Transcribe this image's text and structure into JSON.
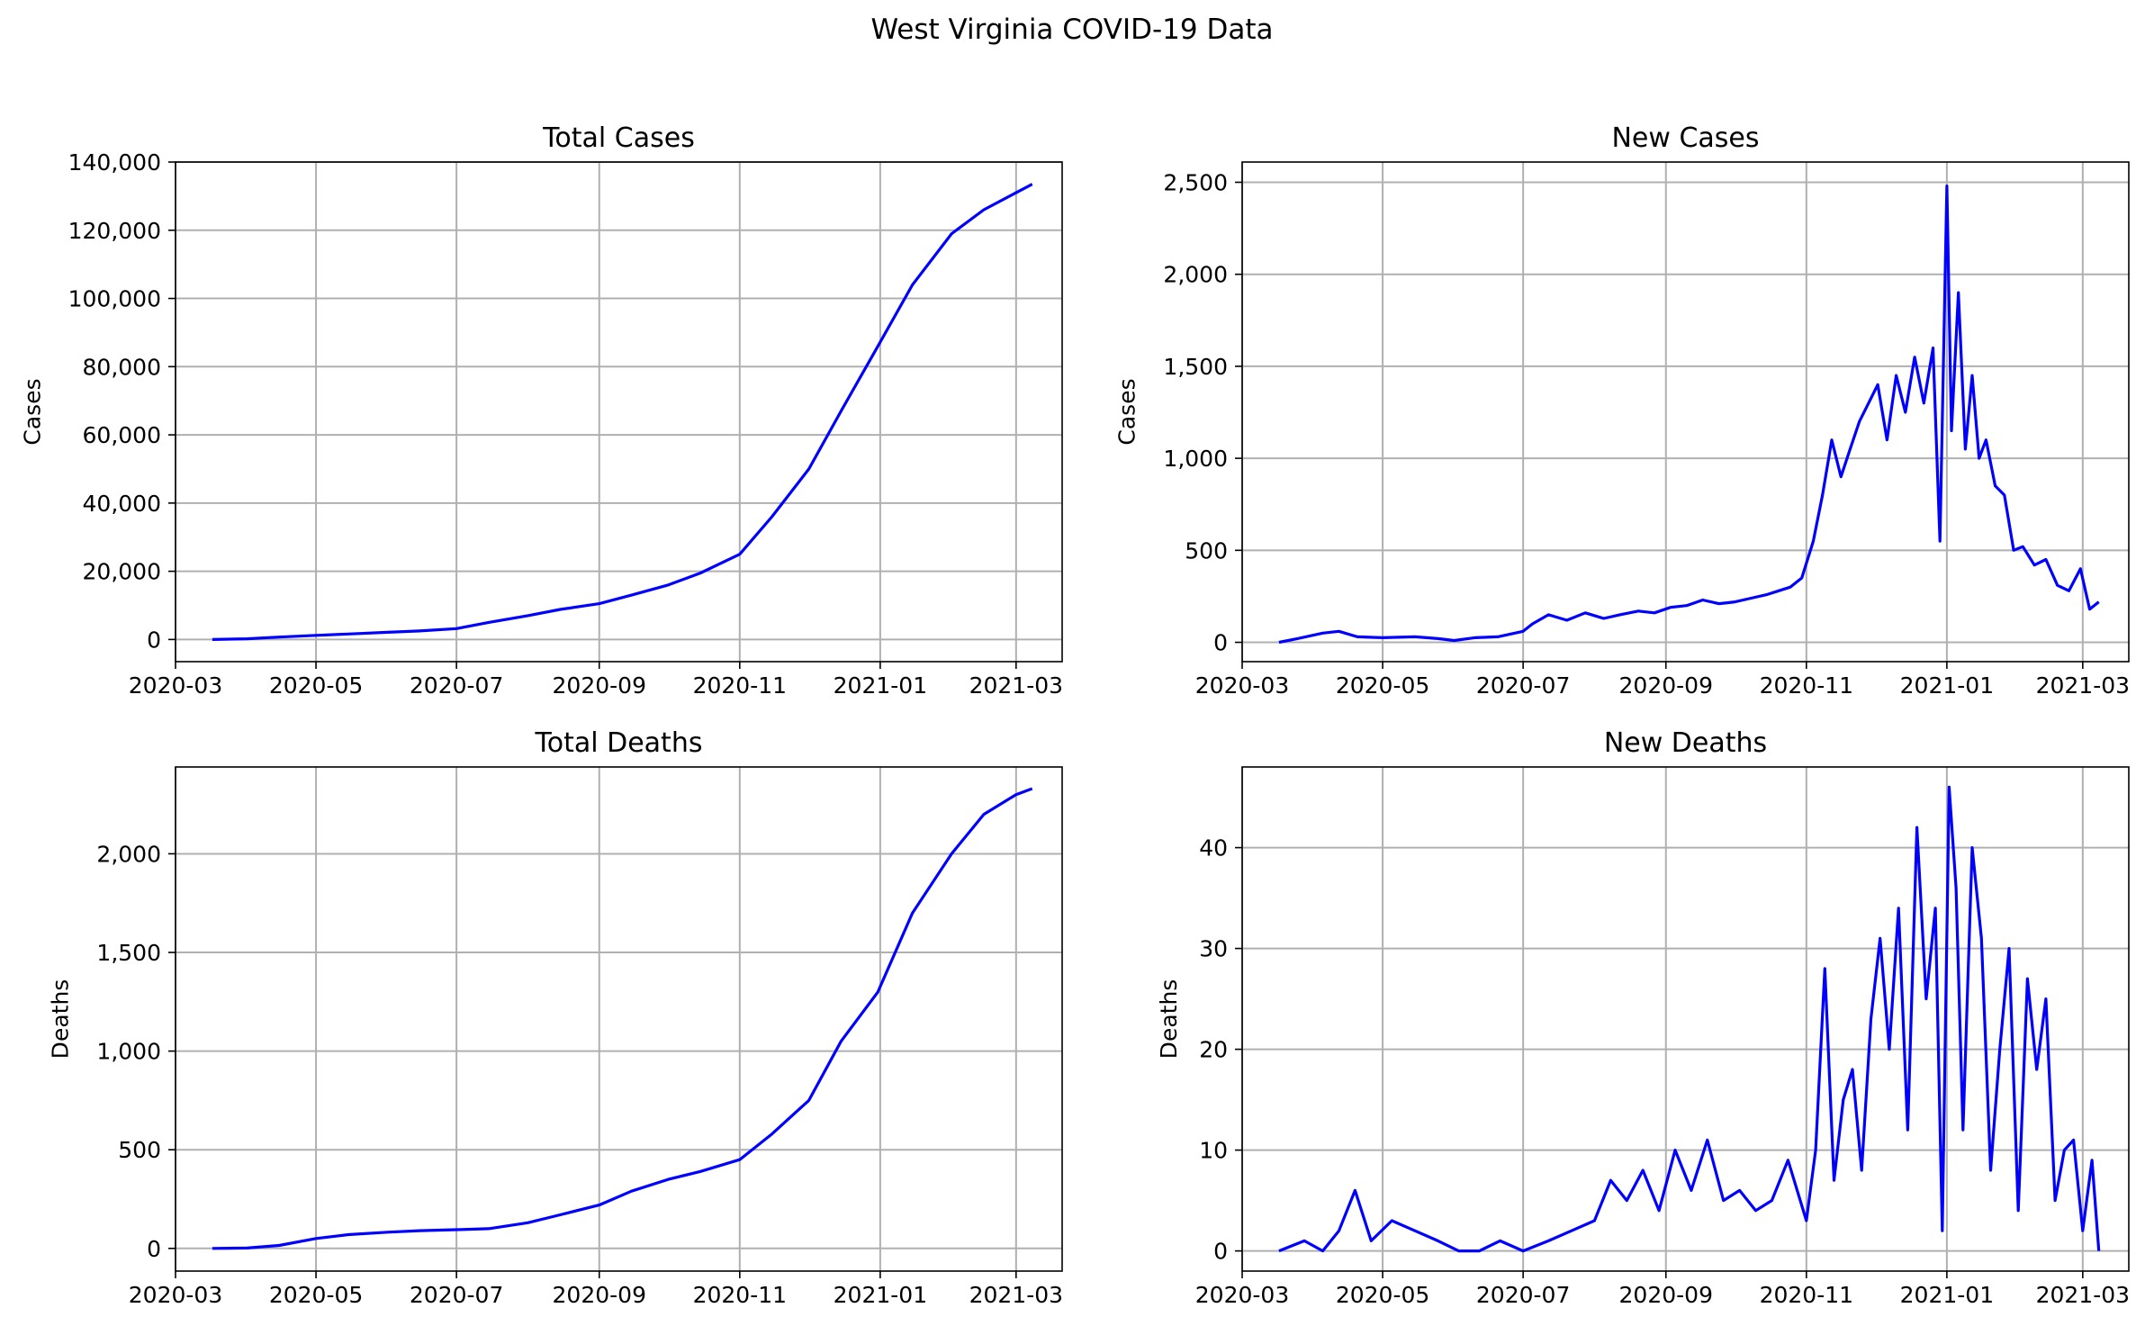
{
  "figure": {
    "title": "West Virginia COVID-19 Data"
  },
  "colors": {
    "line": "#0000ff",
    "grid": "#b0b0b0",
    "axis": "#000000"
  },
  "chart_data": [
    {
      "id": "total-cases",
      "type": "line",
      "title": "Total Cases",
      "xlabel": "",
      "ylabel": "Cases",
      "grid": true,
      "x_axis": "date",
      "xlim": [
        "2020-03-01",
        "2021-03-21"
      ],
      "ylim": [
        -6500,
        140000
      ],
      "xticks": [
        "2020-03-01",
        "2020-05-01",
        "2020-07-01",
        "2020-09-01",
        "2020-11-01",
        "2021-01-01",
        "2021-03-01"
      ],
      "xtick_labels": [
        "2020-03",
        "2020-05",
        "2020-07",
        "2020-09",
        "2020-11",
        "2021-01",
        "2021-03"
      ],
      "yticks": [
        0,
        20000,
        40000,
        60000,
        80000,
        100000,
        120000,
        140000
      ],
      "ytick_labels": [
        "0",
        "20,000",
        "40,000",
        "60,000",
        "80,000",
        "100,000",
        "120,000",
        "140,000"
      ],
      "series": [
        {
          "x": [
            "2020-03-17",
            "2020-04-01",
            "2020-04-15",
            "2020-05-01",
            "2020-05-15",
            "2020-06-01",
            "2020-06-15",
            "2020-07-01",
            "2020-07-15",
            "2020-08-01",
            "2020-08-15",
            "2020-09-01",
            "2020-09-15",
            "2020-10-01",
            "2020-10-15",
            "2020-11-01",
            "2020-11-15",
            "2020-12-01",
            "2020-12-15",
            "2020-12-31",
            "2021-01-15",
            "2021-02-01",
            "2021-02-15",
            "2021-03-01",
            "2021-03-08"
          ],
          "y": [
            0,
            200,
            700,
            1200,
            1600,
            2100,
            2500,
            3200,
            5000,
            7000,
            8800,
            10500,
            13000,
            16000,
            19500,
            25000,
            36000,
            50000,
            67000,
            86000,
            104000,
            119000,
            126000,
            131000,
            133500
          ]
        }
      ]
    },
    {
      "id": "new-cases",
      "type": "line",
      "title": "New Cases",
      "xlabel": "",
      "ylabel": "Cases",
      "grid": true,
      "x_axis": "date",
      "xlim": [
        "2020-03-01",
        "2021-03-21"
      ],
      "ylim": [
        -105,
        2610
      ],
      "xticks": [
        "2020-03-01",
        "2020-05-01",
        "2020-07-01",
        "2020-09-01",
        "2020-11-01",
        "2021-01-01",
        "2021-03-01"
      ],
      "xtick_labels": [
        "2020-03",
        "2020-05",
        "2020-07",
        "2020-09",
        "2020-11",
        "2021-01",
        "2021-03"
      ],
      "yticks": [
        0,
        500,
        1000,
        1500,
        2000,
        2500
      ],
      "ytick_labels": [
        "0",
        "500",
        "1,000",
        "1,500",
        "2,000",
        "2,500"
      ],
      "series": [
        {
          "x": [
            "2020-03-17",
            "2020-03-25",
            "2020-04-05",
            "2020-04-12",
            "2020-04-20",
            "2020-05-01",
            "2020-05-15",
            "2020-05-25",
            "2020-06-01",
            "2020-06-10",
            "2020-06-20",
            "2020-07-01",
            "2020-07-05",
            "2020-07-12",
            "2020-07-20",
            "2020-07-28",
            "2020-08-05",
            "2020-08-12",
            "2020-08-20",
            "2020-08-27",
            "2020-09-03",
            "2020-09-10",
            "2020-09-17",
            "2020-09-24",
            "2020-10-01",
            "2020-10-08",
            "2020-10-15",
            "2020-10-20",
            "2020-10-25",
            "2020-10-30",
            "2020-11-04",
            "2020-11-08",
            "2020-11-12",
            "2020-11-16",
            "2020-11-20",
            "2020-11-24",
            "2020-11-28",
            "2020-12-02",
            "2020-12-06",
            "2020-12-10",
            "2020-12-14",
            "2020-12-18",
            "2020-12-22",
            "2020-12-26",
            "2020-12-29",
            "2021-01-01",
            "2021-01-03",
            "2021-01-06",
            "2021-01-09",
            "2021-01-12",
            "2021-01-15",
            "2021-01-18",
            "2021-01-22",
            "2021-01-26",
            "2021-01-30",
            "2021-02-03",
            "2021-02-08",
            "2021-02-13",
            "2021-02-18",
            "2021-02-23",
            "2021-02-28",
            "2021-03-04",
            "2021-03-08"
          ],
          "y": [
            0,
            20,
            50,
            60,
            30,
            25,
            30,
            20,
            10,
            25,
            30,
            60,
            100,
            150,
            120,
            160,
            130,
            150,
            170,
            160,
            190,
            200,
            230,
            210,
            220,
            240,
            260,
            280,
            300,
            350,
            550,
            800,
            1100,
            900,
            1050,
            1200,
            1300,
            1400,
            1100,
            1450,
            1250,
            1550,
            1300,
            1600,
            550,
            2480,
            1150,
            1900,
            1050,
            1450,
            1000,
            1100,
            850,
            800,
            500,
            520,
            420,
            450,
            310,
            280,
            400,
            180,
            220
          ]
        }
      ]
    },
    {
      "id": "total-deaths",
      "type": "line",
      "title": "Total Deaths",
      "xlabel": "",
      "ylabel": "Deaths",
      "grid": true,
      "x_axis": "date",
      "xlim": [
        "2020-03-01",
        "2021-03-21"
      ],
      "ylim": [
        -115,
        2440
      ],
      "xticks": [
        "2020-03-01",
        "2020-05-01",
        "2020-07-01",
        "2020-09-01",
        "2020-11-01",
        "2021-01-01",
        "2021-03-01"
      ],
      "xtick_labels": [
        "2020-03",
        "2020-05",
        "2020-07",
        "2020-09",
        "2020-11",
        "2021-01",
        "2021-03"
      ],
      "yticks": [
        0,
        500,
        1000,
        1500,
        2000
      ],
      "ytick_labels": [
        "0",
        "500",
        "1,000",
        "1,500",
        "2,000"
      ],
      "series": [
        {
          "x": [
            "2020-03-17",
            "2020-04-01",
            "2020-04-15",
            "2020-05-01",
            "2020-05-15",
            "2020-06-01",
            "2020-06-15",
            "2020-07-01",
            "2020-07-15",
            "2020-08-01",
            "2020-08-15",
            "2020-09-01",
            "2020-09-15",
            "2020-10-01",
            "2020-10-15",
            "2020-11-01",
            "2020-11-15",
            "2020-12-01",
            "2020-12-15",
            "2020-12-31",
            "2021-01-15",
            "2021-02-01",
            "2021-02-15",
            "2021-03-01",
            "2021-03-08"
          ],
          "y": [
            0,
            2,
            15,
            50,
            70,
            82,
            90,
            95,
            100,
            130,
            170,
            220,
            290,
            350,
            390,
            450,
            580,
            750,
            1050,
            1300,
            1700,
            2000,
            2200,
            2300,
            2330
          ]
        }
      ]
    },
    {
      "id": "new-deaths",
      "type": "line",
      "title": "New Deaths",
      "xlabel": "",
      "ylabel": "Deaths",
      "grid": true,
      "x_axis": "date",
      "xlim": [
        "2020-03-01",
        "2021-03-21"
      ],
      "ylim": [
        -2,
        48
      ],
      "xticks": [
        "2020-03-01",
        "2020-05-01",
        "2020-07-01",
        "2020-09-01",
        "2020-11-01",
        "2021-01-01",
        "2021-03-01"
      ],
      "xtick_labels": [
        "2020-03",
        "2020-05",
        "2020-07",
        "2020-09",
        "2020-11",
        "2021-01",
        "2021-03"
      ],
      "yticks": [
        0,
        10,
        20,
        30,
        40
      ],
      "ytick_labels": [
        "0",
        "10",
        "20",
        "30",
        "40"
      ],
      "series": [
        {
          "x": [
            "2020-03-17",
            "2020-03-28",
            "2020-04-05",
            "2020-04-12",
            "2020-04-19",
            "2020-04-26",
            "2020-05-05",
            "2020-05-15",
            "2020-05-25",
            "2020-06-03",
            "2020-06-12",
            "2020-06-21",
            "2020-07-01",
            "2020-07-12",
            "2020-07-22",
            "2020-08-01",
            "2020-08-08",
            "2020-08-15",
            "2020-08-22",
            "2020-08-29",
            "2020-09-05",
            "2020-09-12",
            "2020-09-19",
            "2020-09-26",
            "2020-10-03",
            "2020-10-10",
            "2020-10-17",
            "2020-10-24",
            "2020-11-01",
            "2020-11-05",
            "2020-11-09",
            "2020-11-13",
            "2020-11-17",
            "2020-11-21",
            "2020-11-25",
            "2020-11-29",
            "2020-12-03",
            "2020-12-07",
            "2020-12-11",
            "2020-12-15",
            "2020-12-19",
            "2020-12-23",
            "2020-12-27",
            "2020-12-30",
            "2021-01-02",
            "2021-01-05",
            "2021-01-08",
            "2021-01-12",
            "2021-01-16",
            "2021-01-20",
            "2021-01-24",
            "2021-01-28",
            "2021-02-01",
            "2021-02-05",
            "2021-02-09",
            "2021-02-13",
            "2021-02-17",
            "2021-02-21",
            "2021-02-25",
            "2021-03-01",
            "2021-03-05",
            "2021-03-08"
          ],
          "y": [
            0,
            1,
            0,
            2,
            6,
            1,
            3,
            2,
            1,
            0,
            0,
            1,
            0,
            1,
            2,
            3,
            7,
            5,
            8,
            4,
            10,
            6,
            11,
            5,
            6,
            4,
            5,
            9,
            3,
            10,
            28,
            7,
            15,
            18,
            8,
            23,
            31,
            20,
            34,
            12,
            42,
            25,
            34,
            2,
            46,
            36,
            12,
            40,
            31,
            8,
            20,
            30,
            4,
            27,
            18,
            25,
            5,
            10,
            11,
            2,
            9,
            0
          ]
        }
      ]
    }
  ]
}
